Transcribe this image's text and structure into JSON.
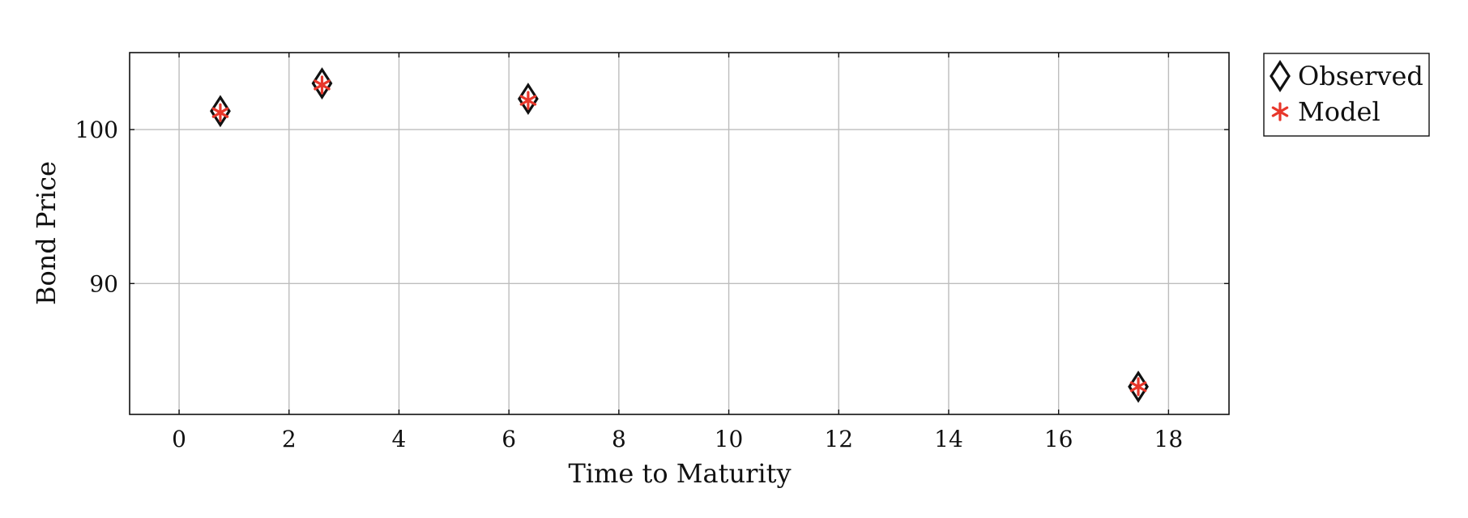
{
  "chart_data": {
    "type": "scatter",
    "title": "",
    "xlabel": "Time to Maturity",
    "ylabel": "Bond Price",
    "xlim": [
      -0.9,
      19.1
    ],
    "ylim": [
      81.5,
      105
    ],
    "xticks": [
      0,
      2,
      4,
      6,
      8,
      10,
      12,
      14,
      16,
      18
    ],
    "yticks": [
      90,
      100
    ],
    "grid": true,
    "legend_position": "outside-right-top",
    "series": [
      {
        "name": "Observed",
        "marker": "diamond",
        "color": "#111111",
        "points": [
          {
            "x": 0.75,
            "y": 101.2
          },
          {
            "x": 2.6,
            "y": 103.0
          },
          {
            "x": 6.35,
            "y": 102.0
          },
          {
            "x": 17.45,
            "y": 83.3
          }
        ]
      },
      {
        "name": "Model",
        "marker": "asterisk",
        "color": "#e8372b",
        "points": [
          {
            "x": 0.75,
            "y": 101.1
          },
          {
            "x": 2.6,
            "y": 102.9
          },
          {
            "x": 6.35,
            "y": 101.9
          },
          {
            "x": 17.45,
            "y": 83.3
          }
        ]
      }
    ]
  }
}
